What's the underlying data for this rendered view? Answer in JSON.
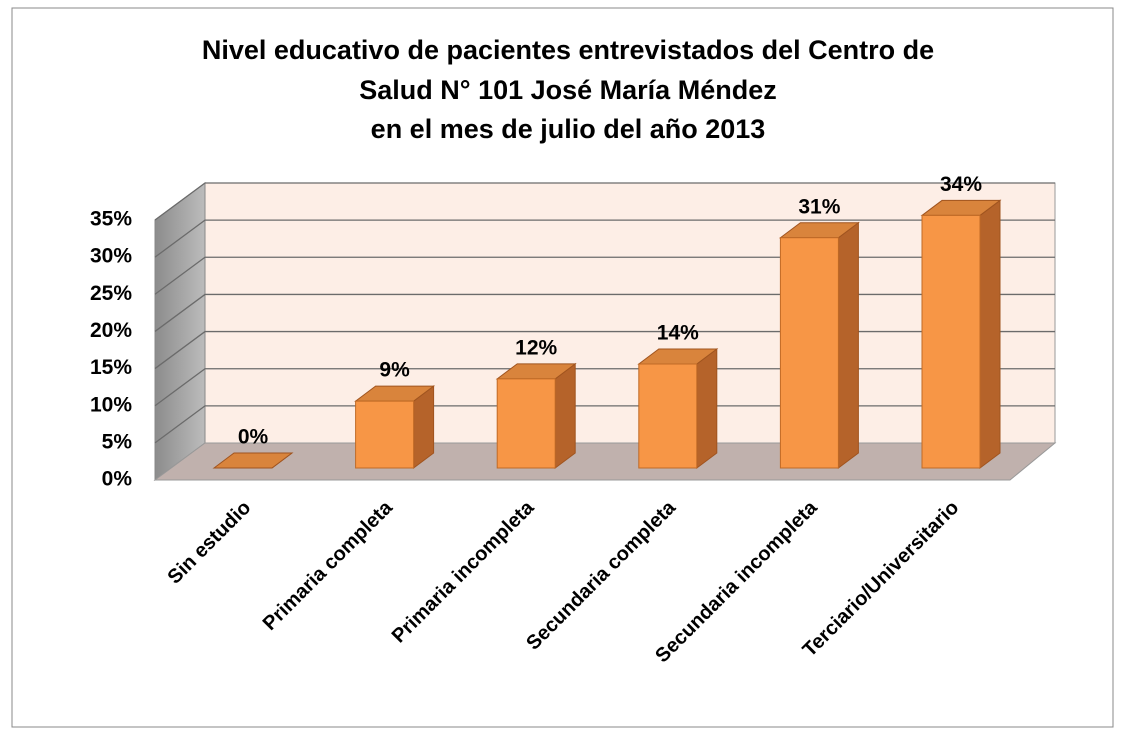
{
  "chart_data": {
    "type": "bar3d",
    "title": [
      "Nivel educativo de pacientes entrevistados del Centro de",
      "Salud N° 101 José María Méndez",
      "en el mes de julio del año 2013"
    ],
    "categories": [
      "Sin estudio",
      "Primaria completa",
      "Primaria incompleta",
      "Secundaria completa",
      "Secundaria incompleta",
      "Terciario/Universitario"
    ],
    "values": [
      0,
      9,
      12,
      14,
      31,
      34
    ],
    "value_labels": [
      "0%",
      "9%",
      "12%",
      "14%",
      "31%",
      "34%"
    ],
    "color": "#f79646",
    "ylim": [
      0,
      35
    ],
    "yticks": [
      {
        "value": 0,
        "label": "0%"
      },
      {
        "value": 5,
        "label": "5%"
      },
      {
        "value": 10,
        "label": "10%"
      },
      {
        "value": 15,
        "label": "15%"
      },
      {
        "value": 20,
        "label": "20%"
      },
      {
        "value": 25,
        "label": "25%"
      },
      {
        "value": 30,
        "label": "30%"
      },
      {
        "value": 35,
        "label": "35%"
      }
    ],
    "grid": true
  }
}
